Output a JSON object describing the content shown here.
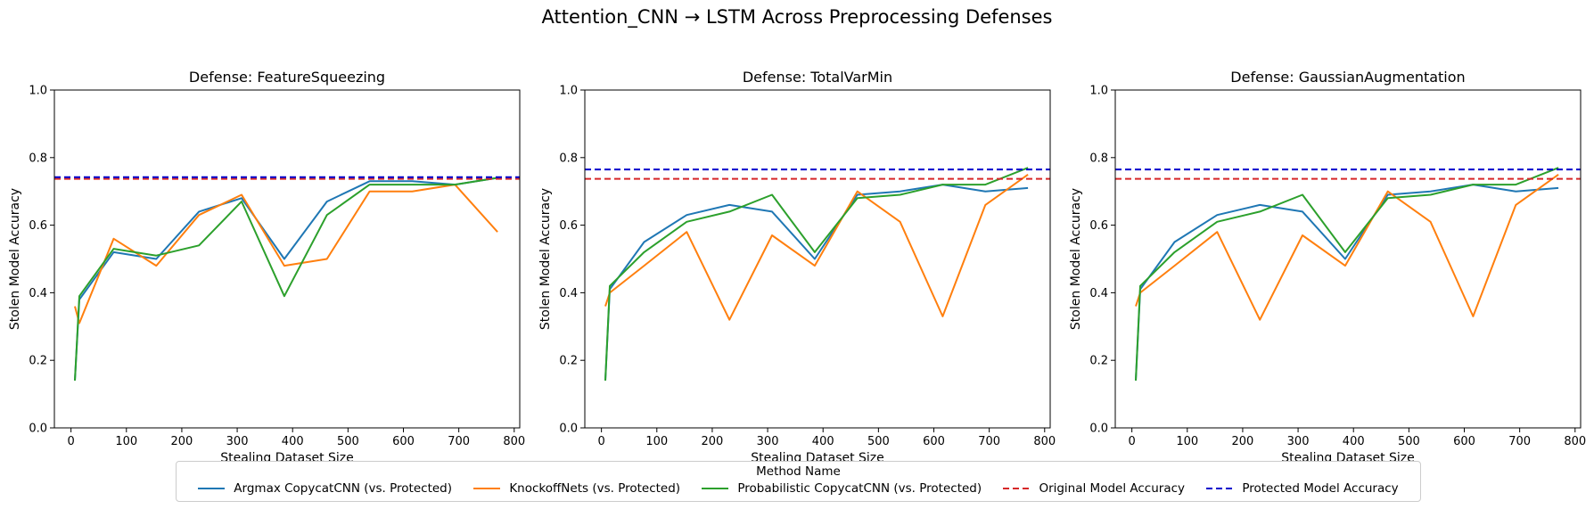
{
  "suptitle": "Attention_CNN → LSTM Across Preprocessing Defenses",
  "legend": {
    "title": "Method Name",
    "entries": [
      {
        "label": "Argmax CopycatCNN (vs. Protected)",
        "color": "#1f77b4",
        "dashed": false
      },
      {
        "label": "KnockoffNets (vs. Protected)",
        "color": "#ff7f0e",
        "dashed": false
      },
      {
        "label": "Probabilistic CopycatCNN (vs. Protected)",
        "color": "#2ca02c",
        "dashed": false
      },
      {
        "label": "Original Model Accuracy",
        "color": "#d62728",
        "dashed": true
      },
      {
        "label": "Protected Model Accuracy",
        "color": "#0000cc",
        "dashed": true
      }
    ]
  },
  "chart_data": [
    {
      "type": "line",
      "title": "Defense: FeatureSqueezing",
      "xlabel": "Stealing Dataset Size",
      "ylabel": "Stolen Model Accuracy",
      "xlim": [
        -30,
        810
      ],
      "ylim": [
        0,
        1.0
      ],
      "xticks": [
        0,
        100,
        200,
        300,
        400,
        500,
        600,
        700,
        800
      ],
      "yticks": [
        "0.0",
        "0.2",
        "0.4",
        "0.6",
        "0.8",
        "1.0"
      ],
      "x": [
        7,
        15,
        77,
        154,
        231,
        308,
        385,
        462,
        539,
        616,
        693,
        770
      ],
      "series": [
        {
          "name": "Argmax CopycatCNN (vs. Protected)",
          "color": "#1f77b4",
          "values": [
            0.14,
            0.38,
            0.52,
            0.5,
            0.64,
            0.68,
            0.5,
            0.67,
            0.73,
            0.73,
            0.72,
            0.74
          ]
        },
        {
          "name": "KnockoffNets (vs. Protected)",
          "color": "#ff7f0e",
          "values": [
            0.36,
            0.31,
            0.56,
            0.48,
            0.63,
            0.69,
            0.48,
            0.5,
            0.7,
            0.7,
            0.72,
            0.58
          ]
        },
        {
          "name": "Probabilistic CopycatCNN (vs. Protected)",
          "color": "#2ca02c",
          "values": [
            0.14,
            0.39,
            0.53,
            0.51,
            0.54,
            0.67,
            0.39,
            0.63,
            0.72,
            0.72,
            0.72,
            0.74
          ]
        }
      ],
      "hlines": [
        {
          "name": "Original Model Accuracy",
          "value": 0.737,
          "color": "#d62728"
        },
        {
          "name": "Protected Model Accuracy",
          "value": 0.742,
          "color": "#0000cc"
        }
      ]
    },
    {
      "type": "line",
      "title": "Defense: TotalVarMin",
      "xlabel": "Stealing Dataset Size",
      "ylabel": "Stolen Model Accuracy",
      "xlim": [
        -30,
        810
      ],
      "ylim": [
        0,
        1.0
      ],
      "xticks": [
        0,
        100,
        200,
        300,
        400,
        500,
        600,
        700,
        800
      ],
      "yticks": [
        "0.0",
        "0.2",
        "0.4",
        "0.6",
        "0.8",
        "1.0"
      ],
      "x": [
        7,
        15,
        77,
        154,
        231,
        308,
        385,
        462,
        539,
        616,
        693,
        770
      ],
      "series": [
        {
          "name": "Argmax CopycatCNN (vs. Protected)",
          "color": "#1f77b4",
          "values": [
            0.14,
            0.41,
            0.55,
            0.63,
            0.66,
            0.64,
            0.5,
            0.69,
            0.7,
            0.72,
            0.7,
            0.71
          ]
        },
        {
          "name": "KnockoffNets (vs. Protected)",
          "color": "#ff7f0e",
          "values": [
            0.36,
            0.4,
            0.48,
            0.58,
            0.32,
            0.57,
            0.48,
            0.7,
            0.61,
            0.33,
            0.66,
            0.75
          ]
        },
        {
          "name": "Probabilistic CopycatCNN (vs. Protected)",
          "color": "#2ca02c",
          "values": [
            0.14,
            0.42,
            0.52,
            0.61,
            0.64,
            0.69,
            0.52,
            0.68,
            0.69,
            0.72,
            0.72,
            0.77
          ]
        }
      ],
      "hlines": [
        {
          "name": "Original Model Accuracy",
          "value": 0.737,
          "color": "#d62728"
        },
        {
          "name": "Protected Model Accuracy",
          "value": 0.765,
          "color": "#0000cc"
        }
      ]
    },
    {
      "type": "line",
      "title": "Defense: GaussianAugmentation",
      "xlabel": "Stealing Dataset Size",
      "ylabel": "Stolen Model Accuracy",
      "xlim": [
        -30,
        810
      ],
      "ylim": [
        0,
        1.0
      ],
      "xticks": [
        0,
        100,
        200,
        300,
        400,
        500,
        600,
        700,
        800
      ],
      "yticks": [
        "0.0",
        "0.2",
        "0.4",
        "0.6",
        "0.8",
        "1.0"
      ],
      "x": [
        7,
        15,
        77,
        154,
        231,
        308,
        385,
        462,
        539,
        616,
        693,
        770
      ],
      "series": [
        {
          "name": "Argmax CopycatCNN (vs. Protected)",
          "color": "#1f77b4",
          "values": [
            0.14,
            0.41,
            0.55,
            0.63,
            0.66,
            0.64,
            0.5,
            0.69,
            0.7,
            0.72,
            0.7,
            0.71
          ]
        },
        {
          "name": "KnockoffNets (vs. Protected)",
          "color": "#ff7f0e",
          "values": [
            0.36,
            0.4,
            0.48,
            0.58,
            0.32,
            0.57,
            0.48,
            0.7,
            0.61,
            0.33,
            0.66,
            0.75
          ]
        },
        {
          "name": "Probabilistic CopycatCNN (vs. Protected)",
          "color": "#2ca02c",
          "values": [
            0.14,
            0.42,
            0.52,
            0.61,
            0.64,
            0.69,
            0.52,
            0.68,
            0.69,
            0.72,
            0.72,
            0.77
          ]
        }
      ],
      "hlines": [
        {
          "name": "Original Model Accuracy",
          "value": 0.737,
          "color": "#d62728"
        },
        {
          "name": "Protected Model Accuracy",
          "value": 0.765,
          "color": "#0000cc"
        }
      ]
    }
  ]
}
